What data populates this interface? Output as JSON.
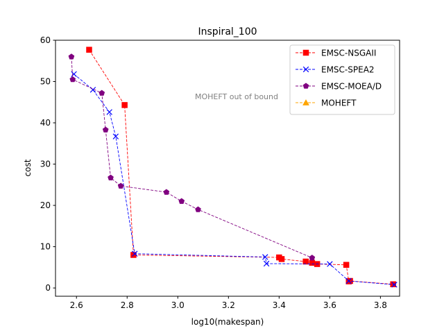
{
  "chart_data": {
    "type": "line",
    "title": "Inspiral_100",
    "xlabel": "log10(makespan)",
    "ylabel": "cost",
    "xlim": [
      2.5172,
      3.8756
    ],
    "ylim": [
      -2.0,
      60.0
    ],
    "xticks": [
      2.6,
      2.8,
      3.0,
      3.2,
      3.4,
      3.6,
      3.8
    ],
    "xtick_labels": [
      "2.6",
      "2.8",
      "3.0",
      "3.2",
      "3.4",
      "3.6",
      "3.8"
    ],
    "yticks": [
      0,
      10,
      20,
      30,
      40,
      50,
      60
    ],
    "ytick_labels": [
      "0",
      "10",
      "20",
      "30",
      "40",
      "50",
      "60"
    ],
    "grid": false,
    "legend_position": "top-right",
    "annotation": "MOHEFT out of bound",
    "series": [
      {
        "name": "EMSC-NSGAII",
        "color": "#ff0000",
        "marker": "square",
        "x": [
          2.65,
          2.79,
          2.825,
          3.4,
          3.41,
          3.505,
          3.53,
          3.55,
          3.665,
          3.675,
          3.68,
          3.85
        ],
        "y": [
          57.7,
          44.3,
          8.0,
          7.4,
          7.0,
          6.4,
          6.1,
          5.8,
          5.6,
          1.6,
          1.7,
          0.9
        ]
      },
      {
        "name": "EMSC-SPEA2",
        "color": "#0000ff",
        "marker": "x",
        "x": [
          2.59,
          2.665,
          2.73,
          2.755,
          2.83,
          3.345,
          3.35,
          3.6,
          3.675,
          3.855
        ],
        "y": [
          51.8,
          48.0,
          42.6,
          36.7,
          8.3,
          7.5,
          5.9,
          5.8,
          1.7,
          0.8
        ]
      },
      {
        "name": "EMSC-MOEA/D",
        "color": "#800080",
        "marker": "pentagon",
        "x": [
          2.58,
          2.585,
          2.7,
          2.715,
          2.735,
          2.775,
          2.955,
          3.015,
          3.08,
          3.53
        ],
        "y": [
          56.0,
          50.5,
          47.2,
          38.3,
          26.7,
          24.7,
          23.2,
          21.0,
          19.0,
          7.3
        ]
      },
      {
        "name": "MOHEFT",
        "color": "#ffa500",
        "marker": "triangle",
        "x": [],
        "y": []
      }
    ]
  }
}
